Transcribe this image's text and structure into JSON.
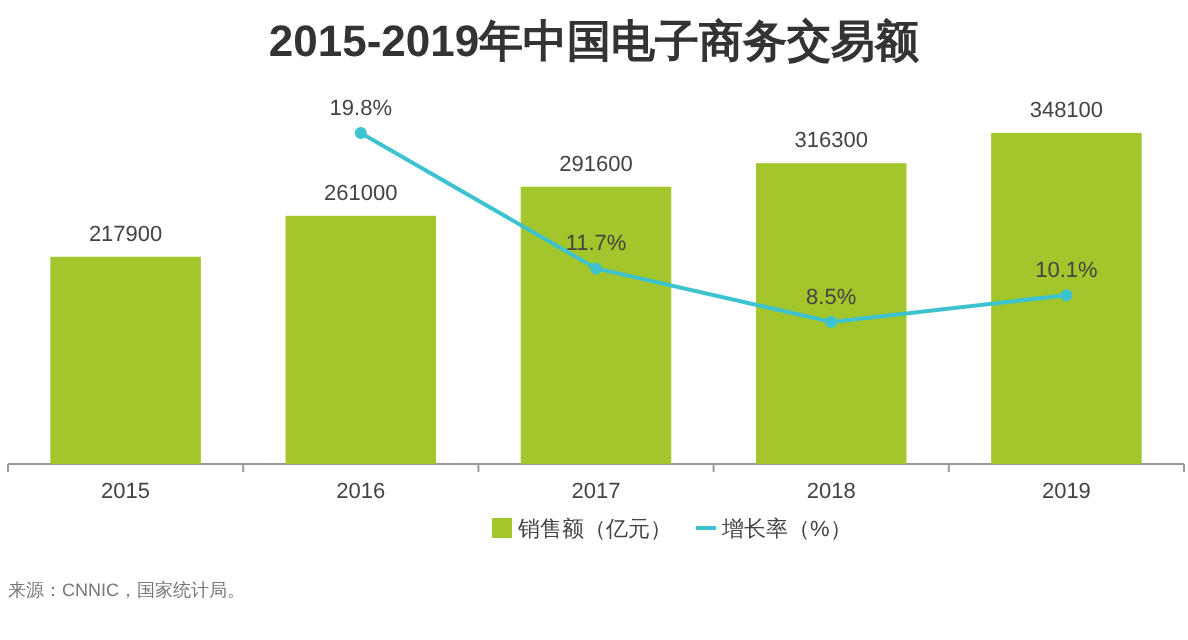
{
  "chart_data": {
    "type": "bar",
    "title": "2015-2019年中国电子商务交易额",
    "categories": [
      "2015",
      "2016",
      "2017",
      "2018",
      "2019"
    ],
    "series": [
      {
        "name": "销售额（亿元）",
        "color": "#a3c62c",
        "values": [
          217900,
          261000,
          291600,
          316300,
          348100
        ],
        "value_labels": [
          "217900",
          "261000",
          "291600",
          "316300",
          "348100"
        ]
      },
      {
        "name": "增长率（%）",
        "type": "line",
        "axis": "y2",
        "color": "#3dc3cf",
        "values": [
          null,
          19.8,
          11.7,
          8.5,
          10.1
        ],
        "value_labels": [
          null,
          "19.8%",
          "11.7%",
          "8.5%",
          "10.1%"
        ]
      }
    ],
    "tick_labels": "x",
    "legend": "bottom",
    "marker": "circle",
    "annotations": [
      "来源：CNNIC，国家统计局。"
    ]
  }
}
